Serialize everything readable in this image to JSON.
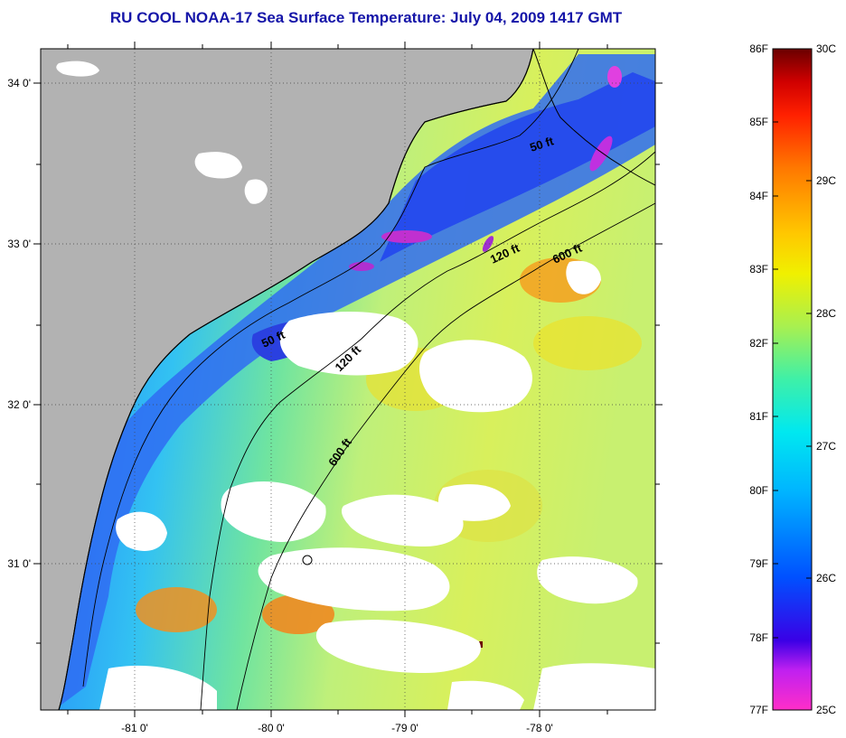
{
  "title": "RU COOL  NOAA-17  Sea Surface Temperature:  July 04, 2009 1417 GMT",
  "map": {
    "lat_labels": [
      {
        "lat": 34,
        "label": "34 0'"
      },
      {
        "lat": 33,
        "label": "33 0'"
      },
      {
        "lat": 32,
        "label": "32 0'"
      },
      {
        "lat": 31,
        "label": "31 0'"
      }
    ],
    "lon_labels": [
      {
        "lon": -81,
        "label": "-81 0'"
      },
      {
        "lon": -80,
        "label": "-80 0'"
      },
      {
        "lon": -79,
        "label": "-79 0'"
      },
      {
        "lon": -78,
        "label": "-78 0'"
      }
    ],
    "contour_labels": [
      "50 ft",
      "120 ft",
      "600 ft",
      "50 ft",
      "120 ft",
      "600 ft"
    ],
    "colors": {
      "land": "#b2b2b2",
      "cloud": "#ffffff",
      "coastline": "#000000"
    }
  },
  "colorbar": {
    "fahrenheit_labels": [
      "86F",
      "85F",
      "84F",
      "83F",
      "82F",
      "81F",
      "80F",
      "79F",
      "78F",
      "77F"
    ],
    "celsius_labels": [
      "30C",
      "29C",
      "28C",
      "27C",
      "26C",
      "25C"
    ]
  }
}
